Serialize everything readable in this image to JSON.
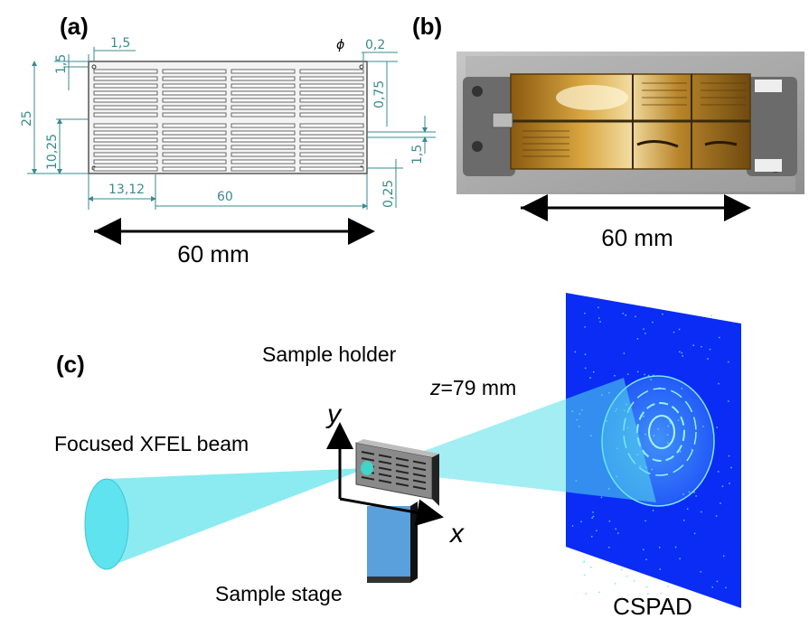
{
  "panel_a": {
    "label": "(a)",
    "dims": {
      "d1_5_top": "1,5",
      "d1_5_left": "1,5",
      "phi": "ϕ",
      "d0_2": "0,2",
      "d0_75": "0,75",
      "d25": "25",
      "d10_25": "10,25",
      "d1_5_right": "1,5",
      "d13_12": "13,12",
      "d60": "60",
      "d0_25": "0,25"
    },
    "scale_label": "60 mm"
  },
  "panel_b": {
    "label": "(b)",
    "scale_label": "60 mm"
  },
  "panel_c": {
    "label": "(c)",
    "sample_holder": "Sample holder",
    "distance_var": "z",
    "distance_value": "=79 mm",
    "axis_y": "y",
    "axis_x": "x",
    "beam_label": "Focused XFEL beam",
    "stage_label": "Sample stage",
    "detector_label": "CSPAD"
  },
  "colors": {
    "dimension": "#3a8a8f",
    "beam": "#7de8ee",
    "detector": "#1030ff",
    "stage": "#5aa0dc"
  }
}
